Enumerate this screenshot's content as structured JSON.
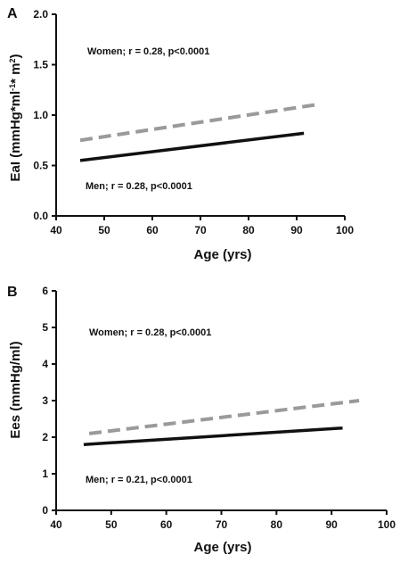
{
  "chart_data": [
    {
      "type": "line",
      "panel_label": "A",
      "xlabel": "Age (yrs)",
      "ylabel": "EaI (mmHg*ml",
      "ylabel_sup1": "-1",
      "ylabel_mid": "* m",
      "ylabel_sup2": "2",
      "ylabel_end": ")",
      "xlim": [
        40,
        100
      ],
      "ylim": [
        0,
        2.0
      ],
      "xticks": [
        "40",
        "50",
        "60",
        "70",
        "80",
        "90",
        "100"
      ],
      "yticks": [
        "0.0",
        "0.5",
        "1.0",
        "1.5",
        "2.0"
      ],
      "grid": false,
      "series": [
        {
          "x": [
            45,
            95
          ],
          "y": [
            0.75,
            1.11
          ],
          "color": "#9a9a9a",
          "dash": true
        },
        {
          "x": [
            45,
            91.5
          ],
          "y": [
            0.55,
            0.82
          ],
          "color": "#111111",
          "dash": false
        }
      ],
      "annotations": [
        "Women; r = 0.28, p<0.0001",
        "Men; r = 0.28, p<0.0001"
      ]
    },
    {
      "type": "line",
      "panel_label": "B",
      "xlabel": "Age (yrs)",
      "ylabel": "Ees (mmHg/ml)",
      "xlim": [
        40,
        100
      ],
      "ylim": [
        0,
        6
      ],
      "xticks": [
        "40",
        "50",
        "60",
        "70",
        "80",
        "90",
        "100"
      ],
      "yticks": [
        "0",
        "1",
        "2",
        "3",
        "4",
        "5",
        "6"
      ],
      "grid": false,
      "series": [
        {
          "x": [
            46,
            95
          ],
          "y": [
            2.1,
            3.0
          ],
          "color": "#9a9a9a",
          "dash": true
        },
        {
          "x": [
            45,
            92
          ],
          "y": [
            1.8,
            2.25
          ],
          "color": "#111111",
          "dash": false
        }
      ],
      "annotations": [
        "Women; r = 0.28, p<0.0001",
        "Men; r = 0.21, p<0.0001"
      ]
    }
  ]
}
